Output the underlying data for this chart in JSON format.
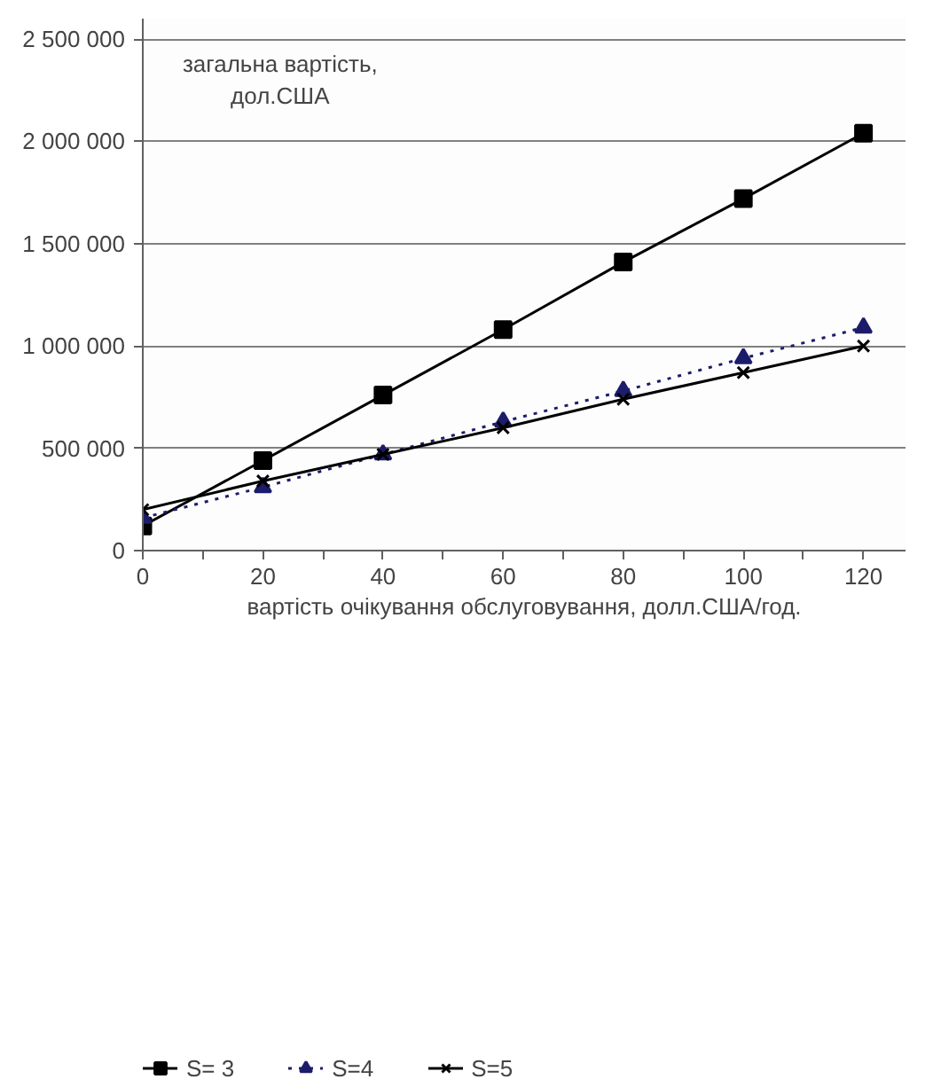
{
  "chart_data": {
    "type": "line",
    "xlabel": "вартість очікування обслуговування, долл.США/год.",
    "annotations": [
      "загальна вартість,\nдол.США"
    ],
    "x": [
      0,
      20,
      40,
      60,
      80,
      100,
      120
    ],
    "series": [
      {
        "name": "S= 3",
        "color": "#000000",
        "marker": "square",
        "line_style": "solid",
        "values": [
          120000,
          440000,
          760000,
          1080000,
          1410000,
          1720000,
          2040000
        ]
      },
      {
        "name": "S=4",
        "color": "#1c1c6b",
        "marker": "triangle",
        "line_style": "dotted",
        "values": [
          160000,
          310000,
          470000,
          630000,
          780000,
          940000,
          1090000
        ]
      },
      {
        "name": "S=5",
        "color": "#000000",
        "marker": "cross",
        "line_style": "solid",
        "values": [
          200000,
          340000,
          470000,
          600000,
          740000,
          870000,
          1000000
        ]
      }
    ],
    "xlim": [
      0,
      127
    ],
    "ylim": [
      0,
      2600000
    ],
    "xticks": [
      0,
      {
        "value": 10,
        "label": null
      },
      20,
      {
        "value": 30,
        "label": null
      },
      40,
      {
        "value": 50,
        "label": null
      },
      60,
      {
        "value": 70,
        "label": null
      },
      80,
      {
        "value": 90,
        "label": null
      },
      100,
      {
        "value": 110,
        "label": null
      },
      120
    ],
    "yticks": [
      {
        "value": 0,
        "label": "0"
      },
      {
        "value": 500000,
        "label": "500 000"
      },
      {
        "value": 1000000,
        "label": "1 000 000"
      },
      {
        "value": 1500000,
        "label": "1 500 000"
      },
      {
        "value": 2000000,
        "label": "2 000 000"
      },
      {
        "value": 2500000,
        "label": "2 500 000"
      }
    ],
    "grid": "y",
    "legend": "bottom"
  }
}
